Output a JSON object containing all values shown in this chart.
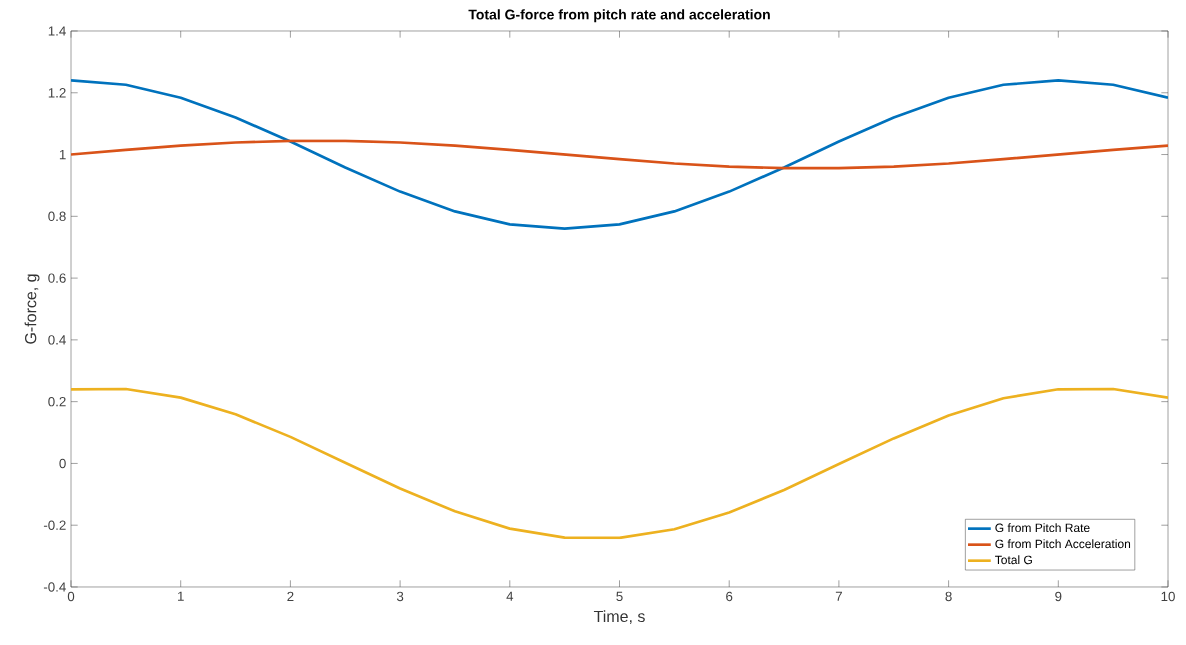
{
  "chart_data": {
    "type": "line",
    "title": "Total G-force from pitch rate and acceleration",
    "xlabel": "Time, s",
    "ylabel": "G-force, g",
    "x": [
      0,
      0.5,
      1,
      1.5,
      2,
      2.5,
      3,
      3.5,
      4,
      4.5,
      5,
      5.5,
      6,
      6.5,
      7,
      7.5,
      8,
      8.5,
      9,
      9.5,
      10
    ],
    "series": [
      {
        "name": "G from Pitch Rate",
        "color": "#0072bd",
        "values": [
          1.24,
          1.226,
          1.184,
          1.12,
          1.042,
          0.958,
          0.88,
          0.816,
          0.774,
          0.76,
          0.774,
          0.816,
          0.88,
          0.958,
          1.042,
          1.12,
          1.184,
          1.226,
          1.24,
          1.226,
          1.184
        ]
      },
      {
        "name": "G from Pitch Acceleration",
        "color": "#d95319",
        "values": [
          1.0,
          1.015,
          1.029,
          1.039,
          1.044,
          1.044,
          1.039,
          1.029,
          1.015,
          1.0,
          0.985,
          0.971,
          0.961,
          0.956,
          0.956,
          0.961,
          0.971,
          0.985,
          1.0,
          1.015,
          1.029
        ]
      },
      {
        "name": "Total G",
        "color": "#edb120",
        "values": [
          0.24,
          0.241,
          0.213,
          0.159,
          0.086,
          0.002,
          -0.081,
          -0.155,
          -0.211,
          -0.24,
          -0.241,
          -0.213,
          -0.159,
          -0.086,
          -0.002,
          0.081,
          0.155,
          0.211,
          0.24,
          0.241,
          0.213
        ]
      }
    ],
    "xlim": [
      0,
      10
    ],
    "ylim": [
      -0.4,
      1.4
    ],
    "xticks": [
      0,
      1,
      2,
      3,
      4,
      5,
      6,
      7,
      8,
      9,
      10
    ],
    "yticks": [
      -0.4,
      -0.2,
      0,
      0.2,
      0.4,
      0.6,
      0.8,
      1,
      1.2,
      1.4
    ],
    "legend": "bottom right",
    "grid": false
  }
}
